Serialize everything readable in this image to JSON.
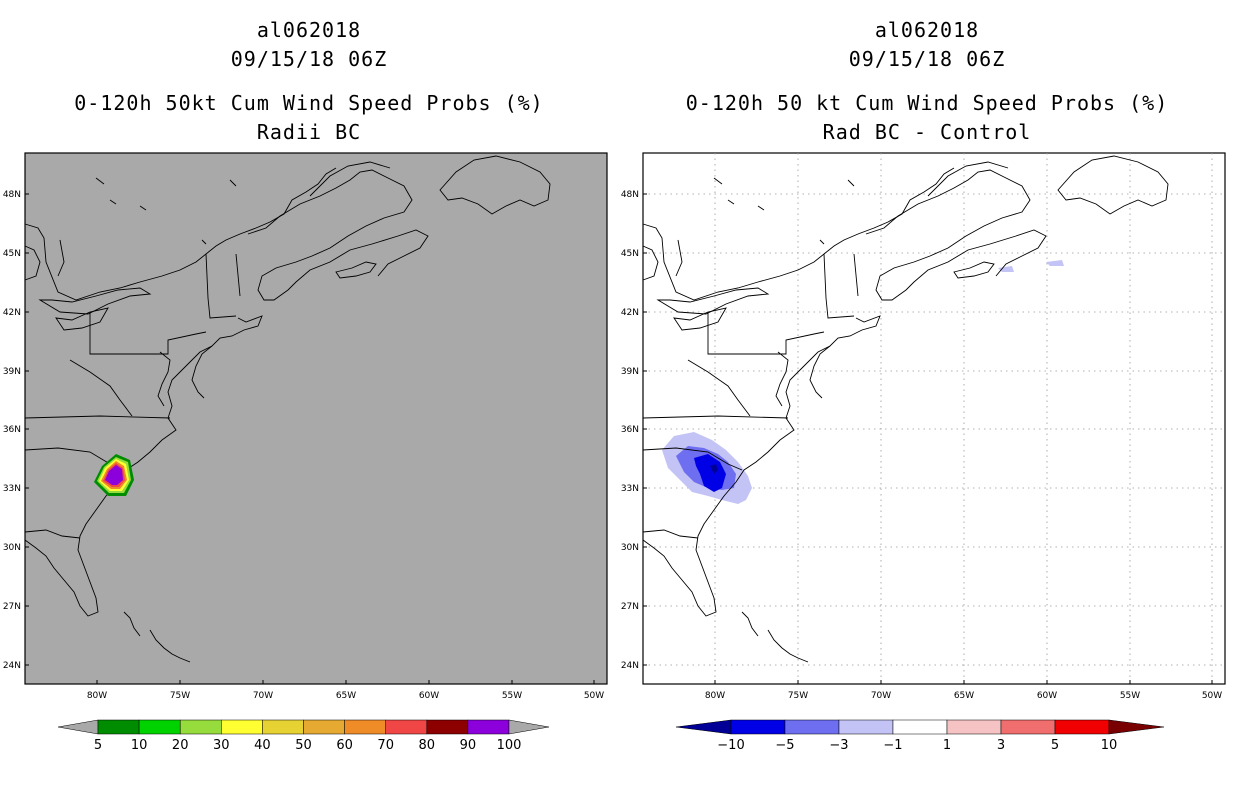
{
  "panels": [
    {
      "id": "left",
      "storm_id": "al062018",
      "datetime": "09/15/18 06Z",
      "title": "0-120h 50kt Cum Wind Speed Probs (%)",
      "subtitle": "Radii BC",
      "map_background": "#a9a9a9",
      "lat_labels": [
        "48N",
        "45N",
        "42N",
        "39N",
        "36N",
        "33N",
        "30N",
        "27N",
        "24N"
      ],
      "lon_labels": [
        "80W",
        "75W",
        "70W",
        "65W",
        "60W",
        "55W",
        "50W"
      ],
      "colorbar": {
        "labels": [
          "5",
          "10",
          "20",
          "30",
          "40",
          "50",
          "60",
          "70",
          "80",
          "90",
          "100"
        ],
        "colors": [
          "#008c00",
          "#00d200",
          "#96dc3c",
          "#ffff32",
          "#e6d232",
          "#e6aa32",
          "#f08c28",
          "#f04646",
          "#8c0000",
          "#8c00dc"
        ],
        "end_color": "#a9a9a9"
      }
    },
    {
      "id": "right",
      "storm_id": "al062018",
      "datetime": "09/15/18 06Z",
      "title": "0-120h 50 kt Cum Wind Speed Probs (%)",
      "subtitle": "Rad BC - Control",
      "map_background": "#ffffff",
      "lat_labels": [
        "48N",
        "45N",
        "42N",
        "39N",
        "36N",
        "33N",
        "30N",
        "27N",
        "24N"
      ],
      "lon_labels": [
        "80W",
        "75W",
        "70W",
        "65W",
        "60W",
        "55W",
        "50W"
      ],
      "colorbar": {
        "labels": [
          "−10",
          "−5",
          "−3",
          "−1",
          "1",
          "3",
          "5",
          "10"
        ],
        "colors": [
          "#0000e6",
          "#6e6ef0",
          "#c3c3f5",
          "#ffffff",
          "#f5c3c3",
          "#f06e6e",
          "#f00000"
        ],
        "left_end_color": "#000096",
        "right_end_color": "#780000"
      }
    }
  ]
}
